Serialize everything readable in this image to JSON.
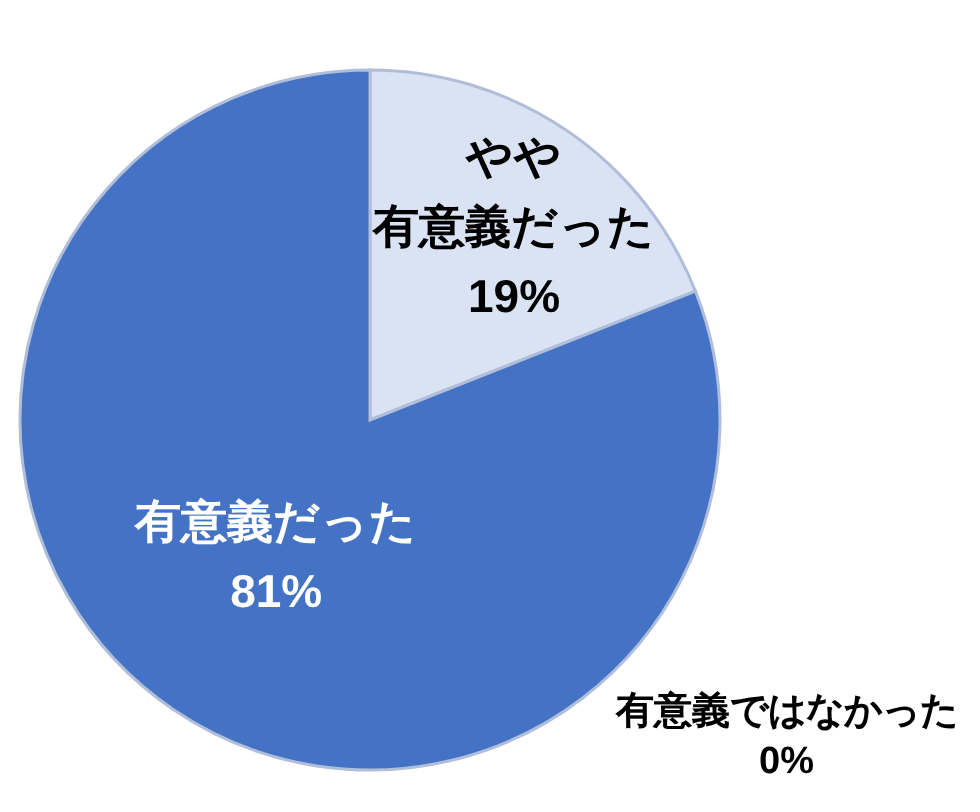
{
  "chart_data": {
    "type": "pie",
    "categories": [
      "やや有意義だった",
      "有意義だった",
      "有意義ではなかった"
    ],
    "values": [
      19,
      81,
      0
    ],
    "value_labels": [
      "19%",
      "81%",
      "0%"
    ],
    "colors": [
      "#dae3f3",
      "#4472c4",
      null
    ]
  }
}
